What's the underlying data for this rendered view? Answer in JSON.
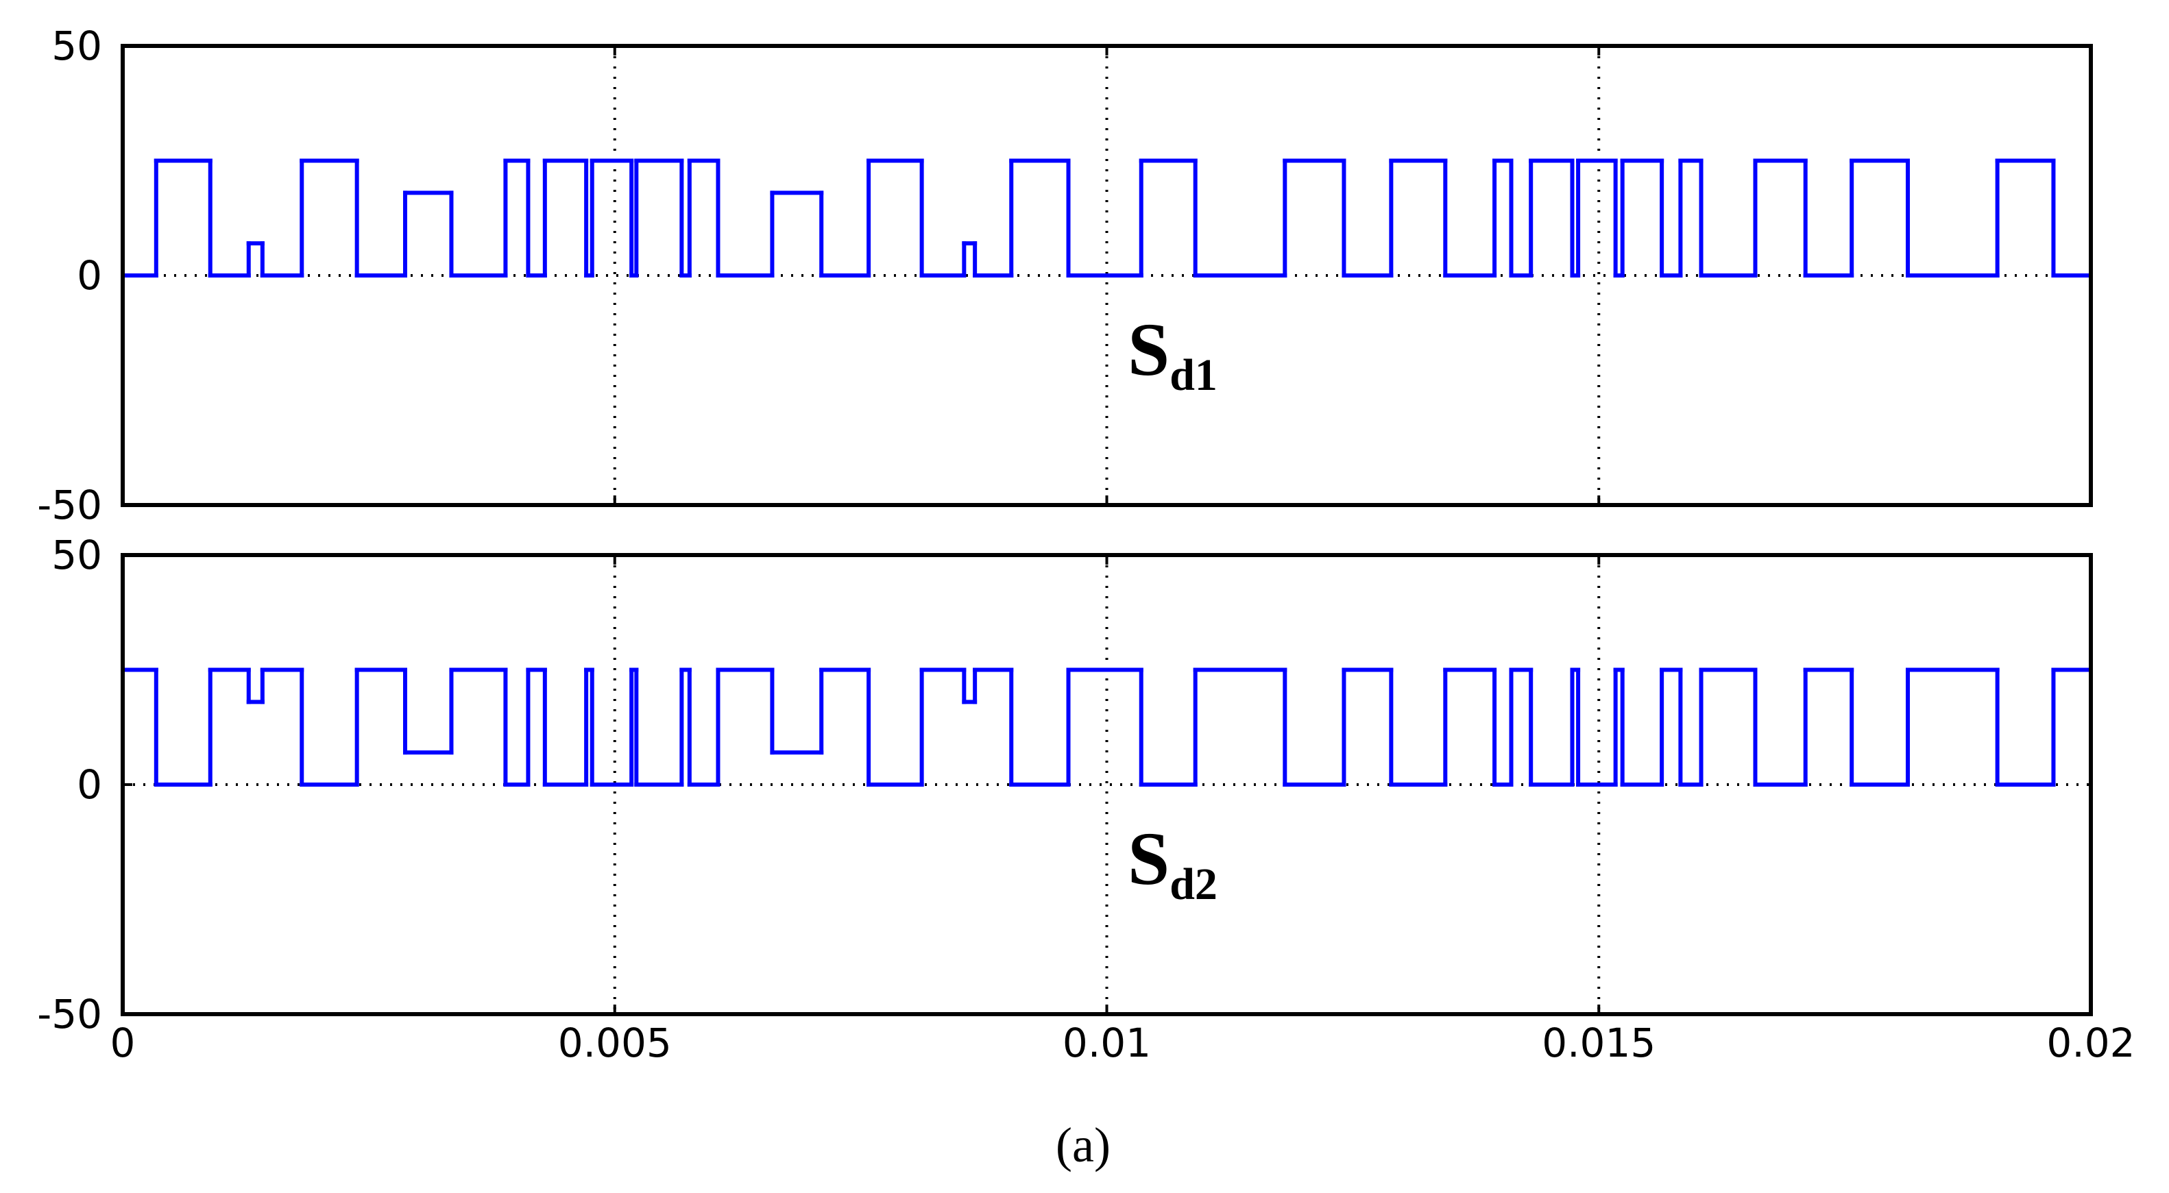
{
  "chart_data": [
    {
      "type": "line",
      "drawstyle": "steps-post",
      "annotation": {
        "text": "S",
        "sub": "d1"
      },
      "x": [
        0,
        0.00034,
        0.00089,
        0.00128,
        0.00142,
        0.00182,
        0.00238,
        0.00287,
        0.00334,
        0.00389,
        0.00412,
        0.00429,
        0.00471,
        0.00477,
        0.00517,
        0.00522,
        0.00568,
        0.00576,
        0.00605,
        0.0066,
        0.0071,
        0.00758,
        0.00812,
        0.00855,
        0.00866,
        0.00903,
        0.00961,
        0.01035,
        0.0109,
        0.01181,
        0.01241,
        0.01289,
        0.01344,
        0.01394,
        0.01411,
        0.01431,
        0.01473,
        0.01479,
        0.01517,
        0.01524,
        0.01564,
        0.01583,
        0.01604,
        0.01659,
        0.0171,
        0.01757,
        0.01814,
        0.01905,
        0.01962
      ],
      "series": [
        {
          "color": "#0000ff",
          "values": [
            0,
            25,
            0,
            7,
            0,
            25,
            0,
            18,
            0,
            25,
            0,
            25,
            0,
            25,
            0,
            25,
            0,
            25,
            0,
            18,
            0,
            25,
            0,
            7,
            0,
            25,
            0,
            25,
            0,
            25,
            0,
            25,
            0,
            25,
            0,
            25,
            0,
            25,
            0,
            25,
            0,
            25,
            0,
            25,
            0,
            25,
            0,
            25,
            0
          ]
        }
      ],
      "xlim": [
        0,
        0.02
      ],
      "xticks": [
        0,
        0.005,
        0.01,
        0.015,
        0.02
      ],
      "xtick_labels": false,
      "ylim": [
        -50,
        50
      ],
      "yticks": [
        -50,
        0,
        50
      ],
      "grid": true
    },
    {
      "type": "line",
      "drawstyle": "steps-post",
      "annotation": {
        "text": "S",
        "sub": "d2"
      },
      "x": [
        0,
        0.00034,
        0.00089,
        0.00128,
        0.00142,
        0.00182,
        0.00238,
        0.00287,
        0.00334,
        0.00389,
        0.00412,
        0.00429,
        0.00471,
        0.00477,
        0.00517,
        0.00522,
        0.00568,
        0.00576,
        0.00605,
        0.0066,
        0.0071,
        0.00758,
        0.00812,
        0.00855,
        0.00866,
        0.00903,
        0.00961,
        0.01035,
        0.0109,
        0.01181,
        0.01241,
        0.01289,
        0.01344,
        0.01394,
        0.01411,
        0.01431,
        0.01473,
        0.01479,
        0.01517,
        0.01524,
        0.01564,
        0.01583,
        0.01604,
        0.01659,
        0.0171,
        0.01757,
        0.01814,
        0.01905,
        0.01962
      ],
      "series": [
        {
          "color": "#0000ff",
          "values": [
            25,
            0,
            25,
            18,
            25,
            0,
            25,
            7,
            25,
            0,
            25,
            0,
            25,
            0,
            25,
            0,
            25,
            0,
            25,
            7,
            25,
            0,
            25,
            18,
            25,
            0,
            25,
            0,
            25,
            0,
            25,
            0,
            25,
            0,
            25,
            0,
            25,
            0,
            25,
            0,
            25,
            0,
            25,
            0,
            25,
            0,
            25,
            0,
            25
          ]
        }
      ],
      "xlim": [
        0,
        0.02
      ],
      "xticks": [
        0,
        0.005,
        0.01,
        0.015,
        0.02
      ],
      "xtick_labels": true,
      "ylim": [
        -50,
        50
      ],
      "yticks": [
        -50,
        0,
        50
      ],
      "grid": true
    }
  ],
  "caption": "(a)"
}
